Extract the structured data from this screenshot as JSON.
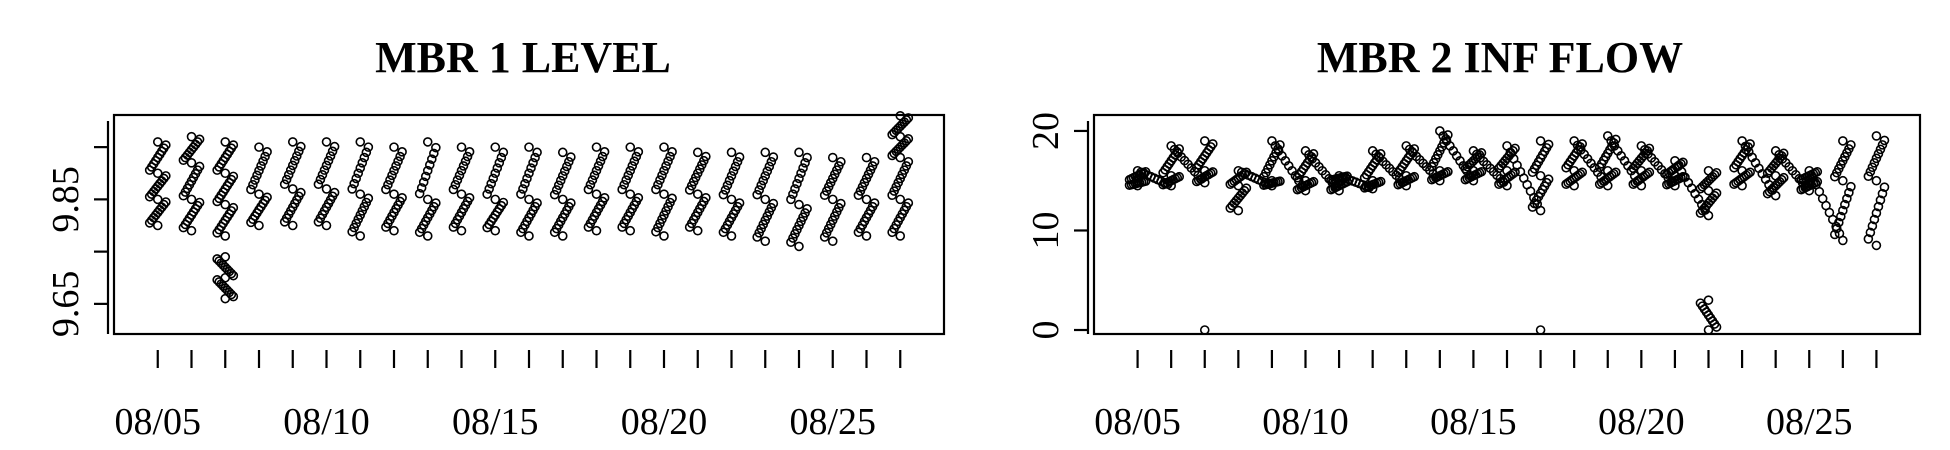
{
  "chart_data": [
    {
      "type": "scatter",
      "title": "MBR 1 LEVEL",
      "xlabel": "",
      "ylabel": "",
      "x_ticks": [
        "08/05",
        "08/10",
        "08/15",
        "08/20",
        "08/25"
      ],
      "y_ticks": [
        "9.65",
        "9.85"
      ],
      "ylim": [
        9.6,
        10.0
      ],
      "xlim": [
        "08/04",
        "08/28"
      ],
      "grid": false,
      "series": [
        {
          "x": [
            "08/05",
            "08/05",
            "08/05",
            "08/05",
            "08/06",
            "08/06",
            "08/06",
            "08/06",
            "08/07",
            "08/07",
            "08/07",
            "08/07",
            "08/07",
            "08/07",
            "08/07",
            "08/08",
            "08/08",
            "08/08",
            "08/09",
            "08/09",
            "08/09",
            "08/10",
            "08/10",
            "08/10",
            "08/11",
            "08/11",
            "08/11",
            "08/12",
            "08/12",
            "08/12",
            "08/13",
            "08/13",
            "08/13",
            "08/14",
            "08/14",
            "08/14",
            "08/15",
            "08/15",
            "08/15",
            "08/16",
            "08/16",
            "08/16",
            "08/17",
            "08/17",
            "08/17",
            "08/18",
            "08/18",
            "08/18",
            "08/19",
            "08/19",
            "08/19",
            "08/20",
            "08/20",
            "08/20",
            "08/21",
            "08/21",
            "08/21",
            "08/22",
            "08/22",
            "08/22",
            "08/23",
            "08/23",
            "08/23",
            "08/24",
            "08/24",
            "08/24",
            "08/25",
            "08/25",
            "08/25",
            "08/26",
            "08/26",
            "08/26",
            "08/27",
            "08/27",
            "08/27",
            "08/27",
            "08/27"
          ],
          "y": [
            9.8,
            9.85,
            9.9,
            9.96,
            9.79,
            9.85,
            9.92,
            9.97,
            9.78,
            9.84,
            9.9,
            9.96,
            9.74,
            9.7,
            9.66,
            9.8,
            9.86,
            9.95,
            9.8,
            9.87,
            9.96,
            9.8,
            9.87,
            9.96,
            9.78,
            9.86,
            9.96,
            9.79,
            9.86,
            9.95,
            9.78,
            9.85,
            9.96,
            9.79,
            9.86,
            9.95,
            9.79,
            9.85,
            9.95,
            9.78,
            9.85,
            9.95,
            9.78,
            9.85,
            9.94,
            9.79,
            9.86,
            9.95,
            9.79,
            9.86,
            9.95,
            9.78,
            9.86,
            9.95,
            9.79,
            9.86,
            9.94,
            9.78,
            9.85,
            9.94,
            9.77,
            9.85,
            9.94,
            9.76,
            9.84,
            9.94,
            9.77,
            9.85,
            9.93,
            9.78,
            9.85,
            9.93,
            9.78,
            9.85,
            9.93,
            9.97,
            10.01
          ]
        }
      ]
    },
    {
      "type": "scatter",
      "title": "MBR 2 INF FLOW",
      "xlabel": "",
      "ylabel": "",
      "x_ticks": [
        "08/05",
        "08/10",
        "08/15",
        "08/20",
        "08/25"
      ],
      "y_ticks": [
        "0",
        "10",
        "20"
      ],
      "ylim": [
        0,
        21
      ],
      "xlim": [
        "08/04",
        "08/28"
      ],
      "grid": false,
      "series": [
        {
          "x": [
            "08/05",
            "08/05",
            "08/05",
            "08/06",
            "08/06",
            "08/06",
            "08/07",
            "08/07",
            "08/07",
            "08/07",
            "08/08",
            "08/08",
            "08/08",
            "08/09",
            "08/09",
            "08/09",
            "08/10",
            "08/10",
            "08/10",
            "08/11",
            "08/11",
            "08/11",
            "08/12",
            "08/12",
            "08/12",
            "08/13",
            "08/13",
            "08/13",
            "08/14",
            "08/14",
            "08/14",
            "08/15",
            "08/15",
            "08/15",
            "08/16",
            "08/16",
            "08/16",
            "08/17",
            "08/17",
            "08/17",
            "08/17",
            "08/18",
            "08/18",
            "08/18",
            "08/19",
            "08/19",
            "08/19",
            "08/20",
            "08/20",
            "08/20",
            "08/21",
            "08/21",
            "08/21",
            "08/22",
            "08/22",
            "08/22",
            "08/22",
            "08/22",
            "08/23",
            "08/23",
            "08/23",
            "08/24",
            "08/24",
            "08/24",
            "08/25",
            "08/25",
            "08/25",
            "08/26",
            "08/26",
            "08/26",
            "08/27",
            "08/27",
            "08/27"
          ],
          "y": [
            14.5,
            15.0,
            16.0,
            14.5,
            15.5,
            18.5,
            14.8,
            16.0,
            19.0,
            0.0,
            12.0,
            14.5,
            16.0,
            14.5,
            15.0,
            19.0,
            14.0,
            15.0,
            18.0,
            14.0,
            15.0,
            15.5,
            14.2,
            15.0,
            18.0,
            14.5,
            15.5,
            18.5,
            15.0,
            16.0,
            20.0,
            15.0,
            16.0,
            18.0,
            14.5,
            16.0,
            18.5,
            12.0,
            15.5,
            19.0,
            0.0,
            14.5,
            16.0,
            19.0,
            14.5,
            16.0,
            19.5,
            14.5,
            16.0,
            18.5,
            14.5,
            15.5,
            17.0,
            11.5,
            14.0,
            16.0,
            3.0,
            0.0,
            14.5,
            16.0,
            19.0,
            13.5,
            15.5,
            18.0,
            14.0,
            15.0,
            16.0,
            9.0,
            15.0,
            19.0,
            8.5,
            15.0,
            19.5
          ]
        }
      ]
    }
  ]
}
